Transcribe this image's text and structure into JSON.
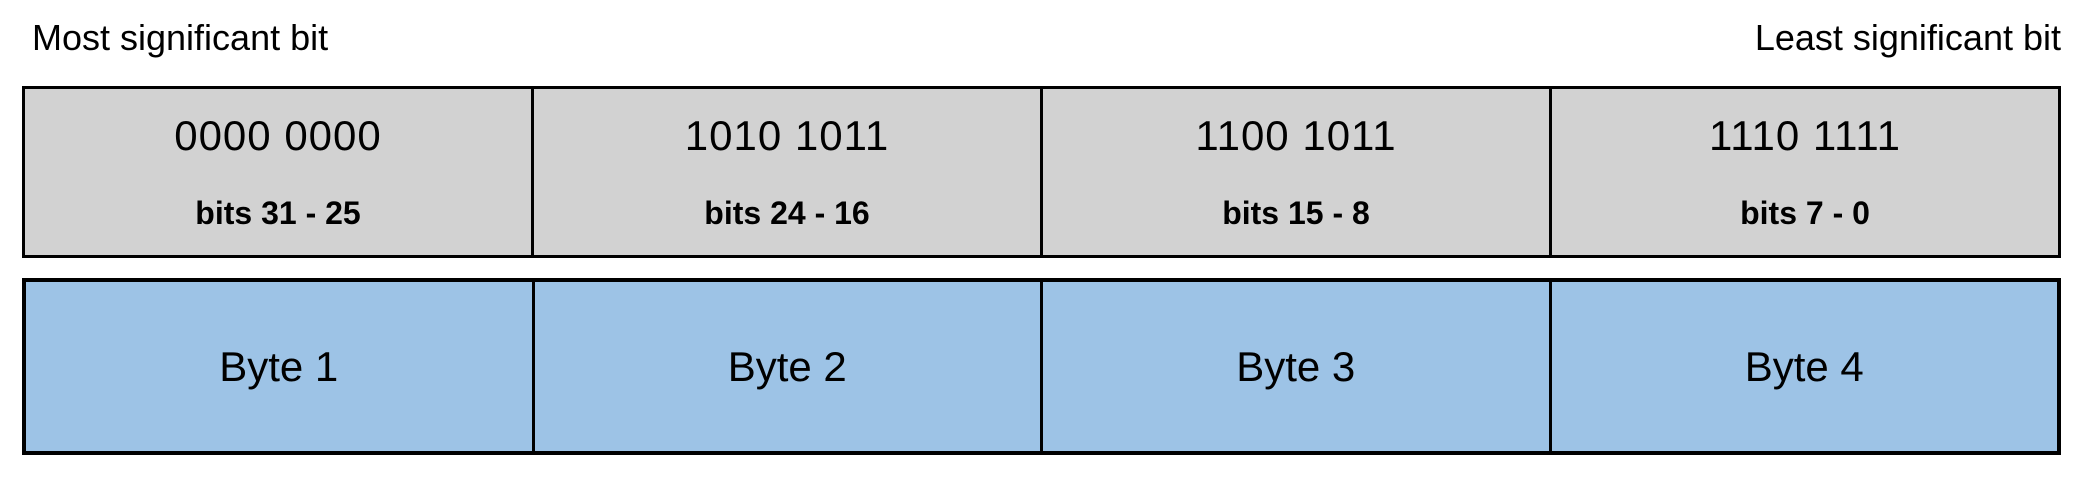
{
  "header": {
    "left_label": "Most significant bit",
    "right_label": "Least significant bit"
  },
  "bit_row": {
    "cells": [
      {
        "value": "0000 0000",
        "bits": "bits 31 - 25"
      },
      {
        "value": "1010 1011",
        "bits": "bits 24 - 16"
      },
      {
        "value": "1100 1011",
        "bits": "bits 15 - 8"
      },
      {
        "value": "1110 1111",
        "bits": "bits 7 - 0"
      }
    ]
  },
  "byte_row": {
    "cells": [
      {
        "label": "Byte 1"
      },
      {
        "label": "Byte 2"
      },
      {
        "label": "Byte 3"
      },
      {
        "label": "Byte 4"
      }
    ]
  },
  "colors": {
    "bit_row_bg": "#d2d2d2",
    "byte_row_bg": "#9dc3e6",
    "border": "#000000"
  }
}
